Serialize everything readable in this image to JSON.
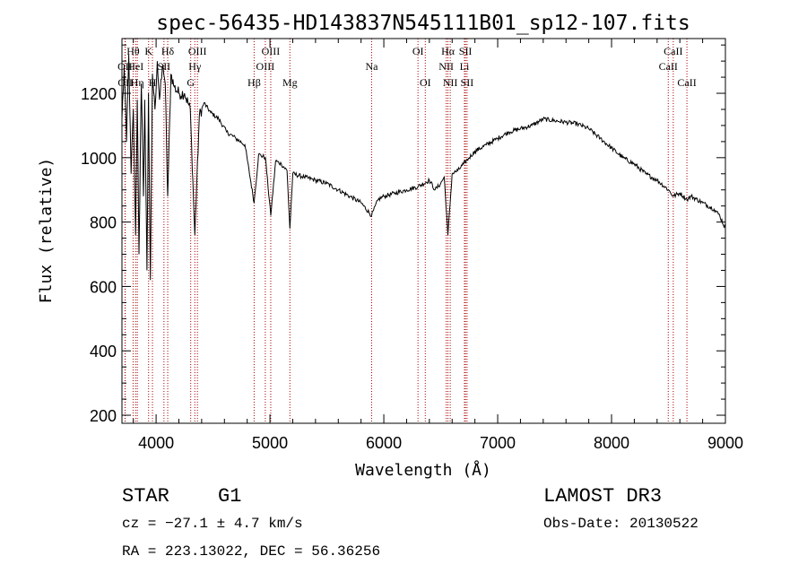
{
  "chart_data": {
    "type": "line",
    "title": "spec-56435-HD143837N545111B01_sp12-107.fits",
    "xlabel": "Wavelength (Å)",
    "ylabel": "Flux (relative)",
    "xlim": [
      3700,
      9000
    ],
    "ylim": [
      175,
      1370
    ],
    "xticks": [
      4000,
      5000,
      6000,
      7000,
      8000,
      9000
    ],
    "yticks": [
      200,
      400,
      600,
      800,
      1000,
      1200
    ],
    "series": [
      {
        "name": "flux",
        "x": [
          3700,
          3720,
          3740,
          3760,
          3780,
          3800,
          3820,
          3835,
          3850,
          3870,
          3889,
          3900,
          3920,
          3933,
          3950,
          3968,
          3990,
          4010,
          4030,
          4060,
          4080,
          4102,
          4130,
          4160,
          4200,
          4250,
          4300,
          4340,
          4380,
          4420,
          4480,
          4550,
          4620,
          4700,
          4780,
          4861,
          4900,
          4960,
          5007,
          5050,
          5100,
          5150,
          5175,
          5200,
          5300,
          5400,
          5500,
          5600,
          5700,
          5800,
          5893,
          5950,
          6000,
          6100,
          6200,
          6300,
          6400,
          6450,
          6500,
          6530,
          6563,
          6600,
          6650,
          6700,
          6750,
          6800,
          6900,
          7000,
          7100,
          7200,
          7300,
          7400,
          7500,
          7600,
          7700,
          7800,
          7900,
          8000,
          8100,
          8200,
          8300,
          8400,
          8500,
          8542,
          8600,
          8662,
          8700,
          8800,
          8900,
          8950,
          9000
        ],
        "y": [
          1120,
          1280,
          1050,
          1320,
          950,
          1150,
          760,
          1180,
          700,
          1230,
          880,
          1180,
          650,
          1200,
          620,
          1260,
          1150,
          1300,
          1180,
          1290,
          1230,
          880,
          1260,
          1220,
          1200,
          1200,
          1150,
          760,
          1130,
          1170,
          1140,
          1120,
          1080,
          1060,
          1040,
          860,
          1010,
          1000,
          820,
          990,
          980,
          960,
          780,
          950,
          940,
          930,
          920,
          900,
          880,
          860,
          820,
          870,
          880,
          890,
          900,
          910,
          930,
          900,
          920,
          940,
          760,
          950,
          960,
          980,
          1000,
          1020,
          1040,
          1060,
          1080,
          1090,
          1100,
          1120,
          1115,
          1110,
          1105,
          1090,
          1060,
          1030,
          1000,
          980,
          950,
          930,
          900,
          880,
          890,
          870,
          880,
          860,
          840,
          820,
          780
        ]
      }
    ],
    "reference_lines": [
      {
        "label": "Hθ",
        "x": 3798,
        "row": 1
      },
      {
        "label": "OII",
        "x": 3727,
        "row": 2
      },
      {
        "label": "OII",
        "x": 3729,
        "row": 3
      },
      {
        "label": "HeI",
        "x": 3820,
        "row": 2
      },
      {
        "label": "Hη",
        "x": 3835,
        "row": 3
      },
      {
        "label": "K",
        "x": 3934,
        "row": 1
      },
      {
        "label": "H",
        "x": 3968,
        "row": 3
      },
      {
        "label": "SII",
        "x": 4069,
        "row": 2
      },
      {
        "label": "Hδ",
        "x": 4102,
        "row": 1
      },
      {
        "label": "OIII",
        "x": 4363,
        "row": 1
      },
      {
        "label": "Hγ",
        "x": 4340,
        "row": 2
      },
      {
        "label": "G",
        "x": 4304,
        "row": 3
      },
      {
        "label": "OIII",
        "x": 5007,
        "row": 1
      },
      {
        "label": "OIII",
        "x": 4959,
        "row": 2
      },
      {
        "label": "Hβ",
        "x": 4861,
        "row": 3
      },
      {
        "label": "Mg",
        "x": 5175,
        "row": 3
      },
      {
        "label": "Na",
        "x": 5893,
        "row": 2
      },
      {
        "label": "OI",
        "x": 6300,
        "row": 1
      },
      {
        "label": "OI",
        "x": 6364,
        "row": 3
      },
      {
        "label": "Hα",
        "x": 6563,
        "row": 1
      },
      {
        "label": "NII",
        "x": 6548,
        "row": 2
      },
      {
        "label": "NII",
        "x": 6583,
        "row": 3
      },
      {
        "label": "SII",
        "x": 6717,
        "row": 1
      },
      {
        "label": "Li",
        "x": 6708,
        "row": 2
      },
      {
        "label": "SII",
        "x": 6731,
        "row": 3
      },
      {
        "label": "CaII",
        "x": 8542,
        "row": 1
      },
      {
        "label": "CaII",
        "x": 8498,
        "row": 2
      },
      {
        "label": "CaII",
        "x": 8662,
        "row": 3
      }
    ],
    "colors": {
      "spectrum": "#000000",
      "reference_line": "#aa0000"
    }
  },
  "info": {
    "class": "STAR",
    "subclass": "G1",
    "cz": "cz = −27.1 ± 4.7 km/s",
    "coords": "RA = 223.13022, DEC =  56.36256",
    "survey": "LAMOST DR3",
    "obs_date": "Obs-Date: 20130522"
  }
}
